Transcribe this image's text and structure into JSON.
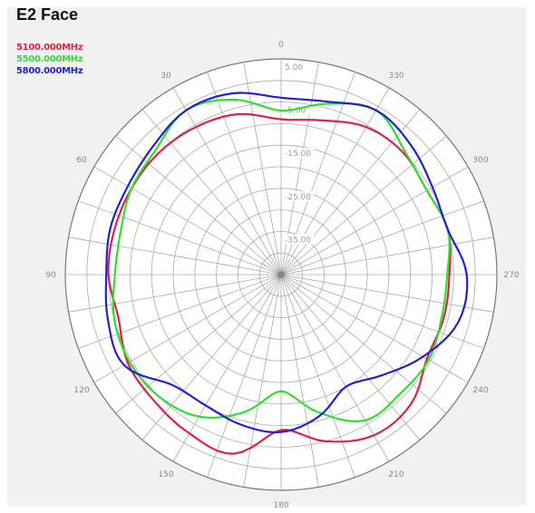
{
  "chart_data": {
    "type": "polar-line",
    "title": "E2 Face",
    "angle_ticks": [
      "0",
      "30",
      "60",
      "90",
      "120",
      "150",
      "180",
      "210",
      "240",
      "270",
      "300",
      "330"
    ],
    "radial_ticks": [
      "5.00",
      "-5.00",
      "-15.00",
      "-25.00",
      "-35.00"
    ],
    "radial_range": [
      -45,
      5
    ],
    "angle_direction": "counter-clockwise, 0 at top",
    "grid": true,
    "legend_position": "top-left",
    "series": [
      {
        "name": "5100.000MHz",
        "color": "#dd2244",
        "angles": [
          0,
          15,
          30,
          45,
          60,
          75,
          90,
          105,
          120,
          135,
          150,
          165,
          180,
          195,
          210,
          225,
          240,
          255,
          270,
          285,
          300,
          315,
          330,
          345
        ],
        "values": [
          -9,
          -6.5,
          -5.5,
          -5,
          -5,
          -5,
          -5,
          -6,
          -4,
          -3.5,
          -2.5,
          -2,
          -9,
          -5,
          -2,
          -2.5,
          -6,
          -6,
          -6,
          -5,
          -6,
          -5,
          -5.5,
          -8
        ]
      },
      {
        "name": "5500.000MHz",
        "color": "#33dd33",
        "angles": [
          0,
          15,
          30,
          45,
          60,
          75,
          90,
          105,
          120,
          135,
          150,
          165,
          180,
          195,
          210,
          225,
          240,
          255,
          270,
          285,
          300,
          315,
          330,
          345
        ],
        "values": [
          -7,
          -3,
          -1,
          -4,
          -5,
          -6.5,
          -6.5,
          -5,
          -4.5,
          -5,
          -7,
          -12,
          -18,
          -12,
          -6,
          -6,
          -5.5,
          -6.5,
          -6.5,
          -5,
          -6,
          -4.5,
          -1,
          -4
        ]
      },
      {
        "name": "5800.000MHz",
        "color": "#2222cc",
        "angles": [
          0,
          15,
          30,
          45,
          60,
          75,
          90,
          105,
          120,
          135,
          150,
          165,
          180,
          195,
          210,
          225,
          240,
          255,
          270,
          285,
          300,
          315,
          330,
          345
        ],
        "values": [
          -4,
          -1.5,
          -1,
          -3,
          -4,
          -4,
          -4.5,
          -3.5,
          -3,
          -9,
          -10,
          -9,
          -8.5,
          -11,
          -15,
          -12,
          -7,
          -2.5,
          -2,
          -5,
          -4.5,
          -2.5,
          -1,
          -3.5
        ]
      }
    ]
  }
}
